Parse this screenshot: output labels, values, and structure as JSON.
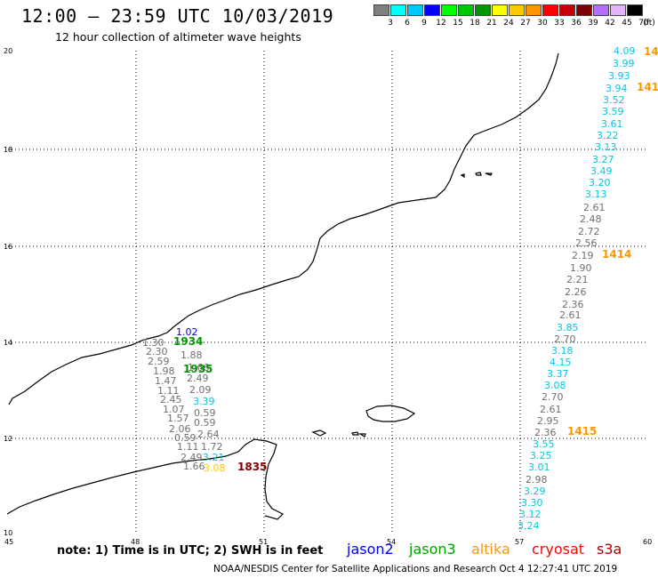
{
  "header": {
    "title": "12:00 — 23:59 UTC 10/03/2019",
    "subtitle": "12 hour collection of altimeter wave heights"
  },
  "legend_scale": {
    "unit": "(ft)",
    "ticks": [
      "3",
      "6",
      "9",
      "12",
      "15",
      "18",
      "21",
      "24",
      "27",
      "30",
      "33",
      "36",
      "39",
      "42",
      "45",
      "70"
    ],
    "colors": [
      "#7f7f7f",
      "#00ffff",
      "#00c8ff",
      "#0000ff",
      "#00ff00",
      "#00c800",
      "#009600",
      "#ffff00",
      "#ffc800",
      "#ff9600",
      "#ff0000",
      "#c80000",
      "#800000",
      "#b46eff",
      "#e6b4ff",
      "#000000"
    ]
  },
  "axes": {
    "x_labels": [
      "45",
      "48",
      "51",
      "54",
      "57",
      "60"
    ],
    "y_labels": [
      "20",
      "18",
      "16",
      "14",
      "12",
      "10"
    ]
  },
  "swh_values": [
    {
      "t": "4.09",
      "c": "#00c8e6"
    },
    {
      "t": "3.99",
      "c": "#00c8e6"
    },
    {
      "t": "3.93",
      "c": "#00c8e6"
    },
    {
      "t": "3.94",
      "c": "#00c8e6"
    },
    {
      "t": "3.52",
      "c": "#00c8e6"
    },
    {
      "t": "3.59",
      "c": "#00c8e6"
    },
    {
      "t": "3.61",
      "c": "#00c8e6"
    },
    {
      "t": "3.22",
      "c": "#00c8e6"
    },
    {
      "t": "3.13",
      "c": "#00c8e6"
    },
    {
      "t": "3.27",
      "c": "#00c8e6"
    },
    {
      "t": "3.49",
      "c": "#00c8e6"
    },
    {
      "t": "3.20",
      "c": "#00c8e6"
    },
    {
      "t": "3.13",
      "c": "#00c8e6"
    },
    {
      "t": "2.61",
      "c": "#707070"
    },
    {
      "t": "2.48",
      "c": "#707070"
    },
    {
      "t": "2.72",
      "c": "#707070"
    },
    {
      "t": "2.56",
      "c": "#707070"
    },
    {
      "t": "2.19",
      "c": "#707070"
    },
    {
      "t": "1.90",
      "c": "#707070"
    },
    {
      "t": "2.21",
      "c": "#707070"
    },
    {
      "t": "2.26",
      "c": "#707070"
    },
    {
      "t": "2.36",
      "c": "#707070"
    },
    {
      "t": "2.61",
      "c": "#707070"
    },
    {
      "t": "3.85",
      "c": "#00c8e6"
    },
    {
      "t": "2.70",
      "c": "#707070"
    },
    {
      "t": "3.18",
      "c": "#00c8e6"
    },
    {
      "t": "4.15",
      "c": "#00c8e6"
    },
    {
      "t": "3.37",
      "c": "#00c8e6"
    },
    {
      "t": "3.08",
      "c": "#00c8e6"
    },
    {
      "t": "2.70",
      "c": "#707070"
    },
    {
      "t": "2.61",
      "c": "#707070"
    },
    {
      "t": "2.95",
      "c": "#707070"
    },
    {
      "t": "2.36",
      "c": "#707070"
    },
    {
      "t": "3.55",
      "c": "#00c8e6"
    },
    {
      "t": "3.25",
      "c": "#00c8e6"
    },
    {
      "t": "3.01",
      "c": "#00c8e6"
    },
    {
      "t": "2.98",
      "c": "#707070"
    },
    {
      "t": "3.29",
      "c": "#00c8e6"
    },
    {
      "t": "3.30",
      "c": "#00c8e6"
    },
    {
      "t": "3.12",
      "c": "#00c8e6"
    },
    {
      "t": "3.24",
      "c": "#00c8e6"
    },
    {
      "t": "1.02",
      "c": "#0000c8"
    },
    {
      "t": "1.30",
      "c": "#707070"
    },
    {
      "t": "2.30",
      "c": "#707070"
    },
    {
      "t": "1.88",
      "c": "#707070"
    },
    {
      "t": "2.59",
      "c": "#707070"
    },
    {
      "t": "1.98",
      "c": "#707070"
    },
    {
      "t": "1.66",
      "c": "#707070"
    },
    {
      "t": "1.47",
      "c": "#707070"
    },
    {
      "t": "2.49",
      "c": "#707070"
    },
    {
      "t": "1.11",
      "c": "#707070"
    },
    {
      "t": "2.09",
      "c": "#707070"
    },
    {
      "t": "2.45",
      "c": "#707070"
    },
    {
      "t": "3.39",
      "c": "#00c8e6"
    },
    {
      "t": "1.07",
      "c": "#707070"
    },
    {
      "t": "0.59",
      "c": "#707070"
    },
    {
      "t": "1.57",
      "c": "#707070"
    },
    {
      "t": "0.59",
      "c": "#707070"
    },
    {
      "t": "2.06",
      "c": "#707070"
    },
    {
      "t": "2.64",
      "c": "#707070"
    },
    {
      "t": "0.59",
      "c": "#707070"
    },
    {
      "t": "1.11",
      "c": "#707070"
    },
    {
      "t": "1.72",
      "c": "#707070"
    },
    {
      "t": "2.49",
      "c": "#707070"
    },
    {
      "t": "3.21",
      "c": "#00c8e6"
    },
    {
      "t": "1.66",
      "c": "#707070"
    },
    {
      "t": "3.08",
      "c": "#ffc800"
    }
  ],
  "time_labels": [
    {
      "t": "14",
      "c": "#ff9600"
    },
    {
      "t": "141",
      "c": "#ff9600"
    },
    {
      "t": "1414",
      "c": "#ff9600"
    },
    {
      "t": "1415",
      "c": "#ff9600"
    },
    {
      "t": "1934",
      "c": "#009600"
    },
    {
      "t": "1935",
      "c": "#009600"
    },
    {
      "t": "1835",
      "c": "#800000"
    }
  ],
  "footer": {
    "note": "note: 1) Time is in UTC; 2) SWH is in feet",
    "satellites": [
      {
        "name": "jason2",
        "color": "#0000ff"
      },
      {
        "name": "jason3",
        "color": "#00a000"
      },
      {
        "name": "altika",
        "color": "#ff9600"
      },
      {
        "name": "cryosat",
        "color": "#ff0000"
      },
      {
        "name": "s3a",
        "color": "#b00000"
      }
    ],
    "credit": "NOAA/NESDIS Center for Satellite Applications and Research    Oct  4 12:27:41 UTC 2019"
  }
}
